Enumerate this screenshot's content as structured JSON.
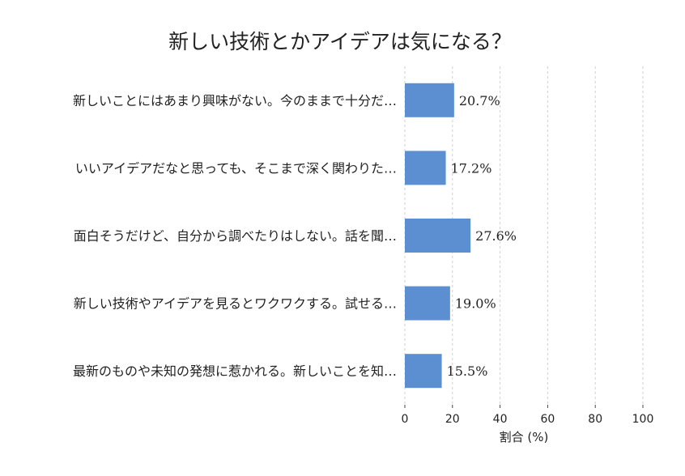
{
  "chart_data": {
    "type": "bar",
    "orientation": "horizontal",
    "title": "新しい技術とかアイデアは気になる？",
    "xlabel": "割合 (%)",
    "ylabel": "",
    "xlim": [
      0,
      100
    ],
    "xticks": [
      0,
      20,
      40,
      60,
      80,
      100
    ],
    "grid": true,
    "bar_color": "#5b8fd1",
    "categories": [
      "新しいことにはあまり興味がない。今のままで十分だ…",
      "いいアイデアだなと思っても、そこまで深く関わりた…",
      "面白そうだけど、自分から調べたりはしない。話を聞…",
      "新しい技術やアイデアを見るとワクワクする。試せる…",
      "最新のものや未知の発想に惹かれる。新しいことを知…"
    ],
    "values": [
      20.7,
      17.2,
      27.6,
      19.0,
      15.5
    ],
    "value_labels": [
      "20.7%",
      "17.2%",
      "27.6%",
      "19.0%",
      "15.5%"
    ]
  }
}
